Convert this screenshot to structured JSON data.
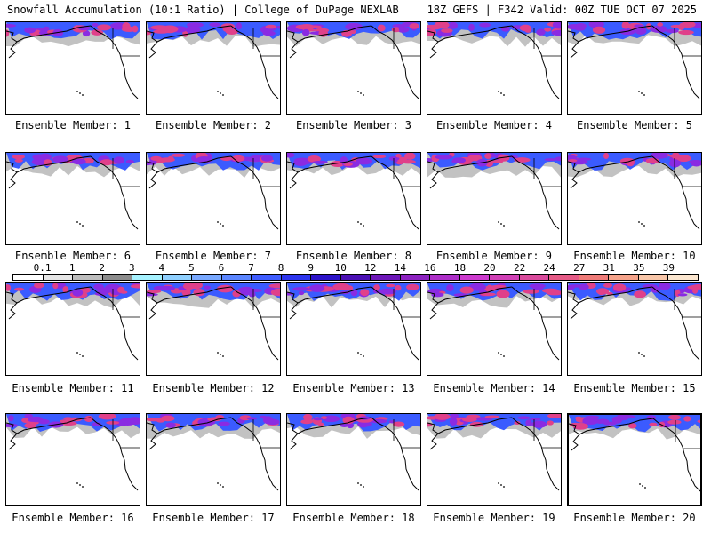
{
  "header": {
    "left": "Snowfall Accumulation (10:1 Ratio) | College of DuPage NEXLAB",
    "right": "18Z GEFS | F342 Valid: 00Z TUE OCT 07 2025"
  },
  "colors": {
    "snow_gray": "#9a9a9a",
    "snow_blue": "#3b5bff",
    "snow_purple": "#8a2be2",
    "snow_magenta": "#e0408a",
    "coast": "#000000"
  },
  "legend": {
    "labels": [
      "0.1",
      "1",
      "2",
      "3",
      "4",
      "5",
      "6",
      "7",
      "8",
      "9",
      "10",
      "12",
      "14",
      "16",
      "18",
      "20",
      "22",
      "24",
      "27",
      "31",
      "35",
      "39"
    ],
    "colors": [
      "#ffffff",
      "#e6e6e6",
      "#bdbdbd",
      "#8c8c8c",
      "#a6f2ff",
      "#8fd0ff",
      "#78a8ff",
      "#5b86ff",
      "#3f5dff",
      "#2d35ee",
      "#2c13c8",
      "#4b10b4",
      "#6d17b8",
      "#8c22c0",
      "#ad2ec8",
      "#cc3ace",
      "#d040b6",
      "#d94a9c",
      "#e55a86",
      "#ef7b78",
      "#f5a38a",
      "#f8c6a8",
      "#fbe6cf"
    ]
  },
  "panels": [
    {
      "label": "Ensemble Member: 1"
    },
    {
      "label": "Ensemble Member: 2"
    },
    {
      "label": "Ensemble Member: 3"
    },
    {
      "label": "Ensemble Member: 4"
    },
    {
      "label": "Ensemble Member: 5"
    },
    {
      "label": "Ensemble Member: 6"
    },
    {
      "label": "Ensemble Member: 7"
    },
    {
      "label": "Ensemble Member: 8"
    },
    {
      "label": "Ensemble Member: 9"
    },
    {
      "label": "Ensemble Member: 10"
    },
    {
      "label": "Ensemble Member: 11"
    },
    {
      "label": "Ensemble Member: 12"
    },
    {
      "label": "Ensemble Member: 13"
    },
    {
      "label": "Ensemble Member: 14"
    },
    {
      "label": "Ensemble Member: 15"
    },
    {
      "label": "Ensemble Member: 16"
    },
    {
      "label": "Ensemble Member: 17"
    },
    {
      "label": "Ensemble Member: 18"
    },
    {
      "label": "Ensemble Member: 19"
    },
    {
      "label": "Ensemble Member: 20"
    }
  ]
}
